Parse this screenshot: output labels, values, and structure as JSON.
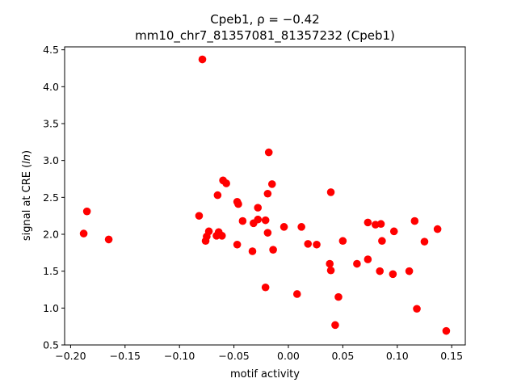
{
  "chart_data": {
    "type": "scatter",
    "title_line1": "Cpeb1, ρ = −0.42",
    "title_line2": "mm10_chr7_81357081_81357232 (Cpeb1)",
    "xlabel": "motif activity",
    "ylabel": "signal at CRE (ln)",
    "xlim": [
      -0.2055,
      0.1625
    ],
    "ylim": [
      0.5,
      4.54
    ],
    "xticks": [
      -0.2,
      -0.15,
      -0.1,
      -0.05,
      0.0,
      0.05,
      0.1,
      0.15
    ],
    "xtick_labels": [
      "−0.20",
      "−0.15",
      "−0.10",
      "−0.05",
      "0.00",
      "0.05",
      "0.10",
      "0.15"
    ],
    "yticks": [
      0.5,
      1.0,
      1.5,
      2.0,
      2.5,
      3.0,
      3.5,
      4.0,
      4.5
    ],
    "ytick_labels": [
      "0.5",
      "1.0",
      "1.5",
      "2.0",
      "2.5",
      "3.0",
      "3.5",
      "4.0",
      "4.5"
    ],
    "grid": false,
    "marker_color": "#ff0000",
    "points": [
      [
        -0.188,
        2.01
      ],
      [
        -0.185,
        2.31
      ],
      [
        -0.165,
        1.93
      ],
      [
        -0.079,
        4.37
      ],
      [
        -0.082,
        2.25
      ],
      [
        -0.076,
        1.91
      ],
      [
        -0.075,
        1.97
      ],
      [
        -0.073,
        2.04
      ],
      [
        -0.065,
        2.53
      ],
      [
        -0.066,
        1.98
      ],
      [
        -0.064,
        2.03
      ],
      [
        -0.061,
        1.98
      ],
      [
        -0.06,
        2.73
      ],
      [
        -0.057,
        2.69
      ],
      [
        -0.047,
        2.44
      ],
      [
        -0.046,
        2.41
      ],
      [
        -0.047,
        1.86
      ],
      [
        -0.042,
        2.18
      ],
      [
        -0.033,
        1.77
      ],
      [
        -0.032,
        2.15
      ],
      [
        -0.028,
        2.2
      ],
      [
        -0.028,
        2.36
      ],
      [
        -0.021,
        2.19
      ],
      [
        -0.019,
        2.55
      ],
      [
        -0.019,
        2.02
      ],
      [
        -0.018,
        3.11
      ],
      [
        -0.015,
        2.68
      ],
      [
        -0.014,
        1.79
      ],
      [
        -0.021,
        1.28
      ],
      [
        -0.004,
        2.1
      ],
      [
        0.008,
        1.19
      ],
      [
        0.012,
        2.1
      ],
      [
        0.018,
        1.87
      ],
      [
        0.026,
        1.86
      ],
      [
        0.038,
        1.6
      ],
      [
        0.039,
        1.51
      ],
      [
        0.039,
        2.57
      ],
      [
        0.043,
        0.77
      ],
      [
        0.046,
        1.15
      ],
      [
        0.05,
        1.91
      ],
      [
        0.063,
        1.6
      ],
      [
        0.073,
        2.16
      ],
      [
        0.073,
        1.66
      ],
      [
        0.08,
        2.13
      ],
      [
        0.085,
        2.14
      ],
      [
        0.084,
        1.5
      ],
      [
        0.086,
        1.91
      ],
      [
        0.096,
        1.46
      ],
      [
        0.097,
        2.04
      ],
      [
        0.111,
        1.5
      ],
      [
        0.116,
        2.18
      ],
      [
        0.118,
        0.99
      ],
      [
        0.125,
        1.9
      ],
      [
        0.137,
        2.07
      ],
      [
        0.145,
        0.69
      ]
    ]
  }
}
